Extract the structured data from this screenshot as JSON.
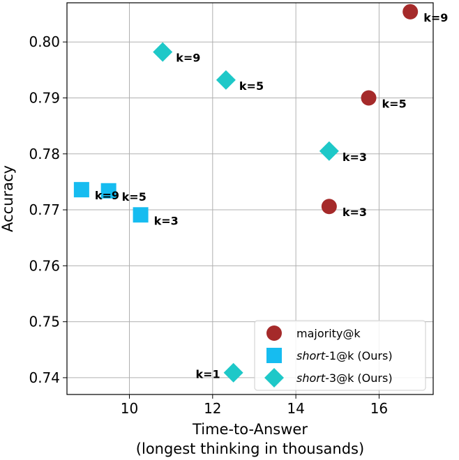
{
  "chart_data": {
    "type": "scatter",
    "xlabel": "Time-to-Answer",
    "xlabel_line2": "(longest thinking in thousands)",
    "ylabel": "Accuracy",
    "xlim": [
      8.5,
      17.3
    ],
    "ylim": [
      0.737,
      0.807
    ],
    "xticks": [
      10,
      12,
      14,
      16
    ],
    "xtick_labels": [
      "10",
      "12",
      "14",
      "16"
    ],
    "yticks": [
      0.74,
      0.75,
      0.76,
      0.77,
      0.78,
      0.79,
      0.8
    ],
    "ytick_labels": [
      "0.74",
      "0.75",
      "0.76",
      "0.77",
      "0.78",
      "0.79",
      "0.80"
    ],
    "grid": true,
    "legend_position": "bottom-right",
    "series": [
      {
        "name": "majority@k",
        "legend_label": "majority@k",
        "marker": "circle",
        "color": "#a52a2a",
        "points": [
          {
            "x": 14.8,
            "y": 0.7706,
            "label": "k=3"
          },
          {
            "x": 15.75,
            "y": 0.79,
            "label": "k=5"
          },
          {
            "x": 16.75,
            "y": 0.8054,
            "label": "k=9"
          }
        ]
      },
      {
        "name": "short-1@k",
        "legend_italic": "short",
        "legend_rest": "-1@k  (Ours)",
        "marker": "square",
        "color": "#16bcf0",
        "points": [
          {
            "x": 10.27,
            "y": 0.7691,
            "label": "k=3"
          },
          {
            "x": 9.5,
            "y": 0.7734,
            "label": "k=5"
          },
          {
            "x": 8.85,
            "y": 0.7736,
            "label": "k=9"
          }
        ]
      },
      {
        "name": "short-3@k",
        "legend_italic": "short",
        "legend_rest": "-3@k  (Ours)",
        "marker": "diamond",
        "color": "#1ec8c8",
        "points": [
          {
            "x": 12.5,
            "y": 0.7409,
            "label": "k=1"
          },
          {
            "x": 14.8,
            "y": 0.7805,
            "label": "k=3"
          },
          {
            "x": 12.32,
            "y": 0.7932,
            "label": "k=5"
          },
          {
            "x": 10.8,
            "y": 0.7982,
            "label": "k=9"
          }
        ]
      }
    ]
  }
}
